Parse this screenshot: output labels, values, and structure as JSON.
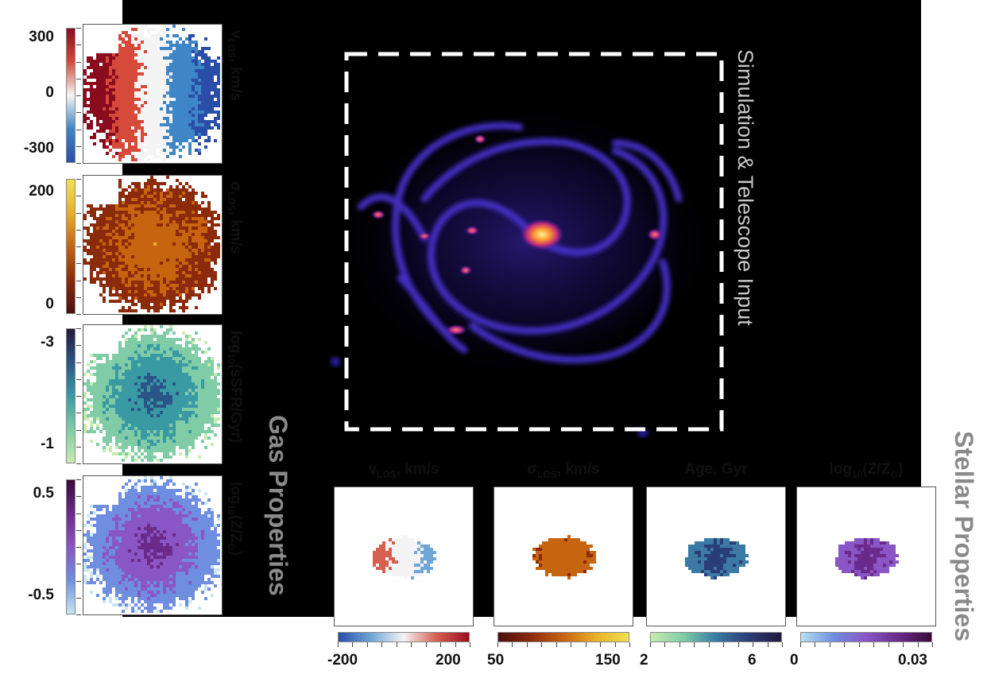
{
  "simulation_label": "Simulation & Telescope Input",
  "gas": {
    "title": "Gas Properties",
    "maps": [
      {
        "label_html": "v<sub>LOS</sub>, km/s",
        "ticks": [
          "300",
          "0",
          "-300"
        ],
        "cmap": [
          "#2a4ea8",
          "#3f86c6",
          "#f4f4f4",
          "#d64a3b",
          "#8a0a1e"
        ]
      },
      {
        "label_html": "σ<sub>LOS</sub>, km/s",
        "ticks": [
          "200",
          "0"
        ],
        "cmap": [
          "#4a1010",
          "#8c2a0c",
          "#c6640f",
          "#e8b12a",
          "#f2e04e"
        ]
      },
      {
        "label_html": "log<sub>10</sub>(sSFR/Gyr)",
        "ticks": [
          "-3",
          "-1"
        ],
        "cmap": [
          "#c8ecb0",
          "#7fcca6",
          "#3a9aa4",
          "#2b5586",
          "#241a3c"
        ]
      },
      {
        "label_html": "log<sub>10</sub>(Z/Z<sub>⊙</sub>)",
        "ticks": [
          "0.5",
          "-0.5"
        ],
        "cmap": [
          "#c9e6f0",
          "#6f8ee0",
          "#8a55c4",
          "#6a2a8a",
          "#3a0a3a"
        ]
      }
    ]
  },
  "stellar": {
    "title": "Stellar Properties",
    "maps": [
      {
        "label_html": "v<sub>LOS</sub>, km/s",
        "ticks": [
          "-200",
          "200"
        ],
        "cmap": [
          "#2a4ea8",
          "#6fa6d6",
          "#f4f4f4",
          "#d66050",
          "#9a0f20"
        ]
      },
      {
        "label_html": "σ<sub>LOS</sub>, km/s",
        "ticks": [
          "50",
          "150"
        ],
        "cmap": [
          "#4a1010",
          "#8c2a0c",
          "#c6640f",
          "#e8b12a",
          "#f2e04e"
        ]
      },
      {
        "label_html": "Age, Gyr",
        "ticks": [
          "2",
          "6"
        ],
        "cmap": [
          "#c8ecb0",
          "#7fcca6",
          "#3a7aa4",
          "#2b3d76",
          "#241a3c"
        ]
      },
      {
        "label_html": "log<sub>10</sub>(Z/Z<sub>⊙</sub>)",
        "ticks": [
          "0",
          "0.03"
        ],
        "cmap": [
          "#b6e2f0",
          "#6f8ee0",
          "#8a55c4",
          "#6a2a8a",
          "#3a0a3a"
        ]
      }
    ]
  }
}
